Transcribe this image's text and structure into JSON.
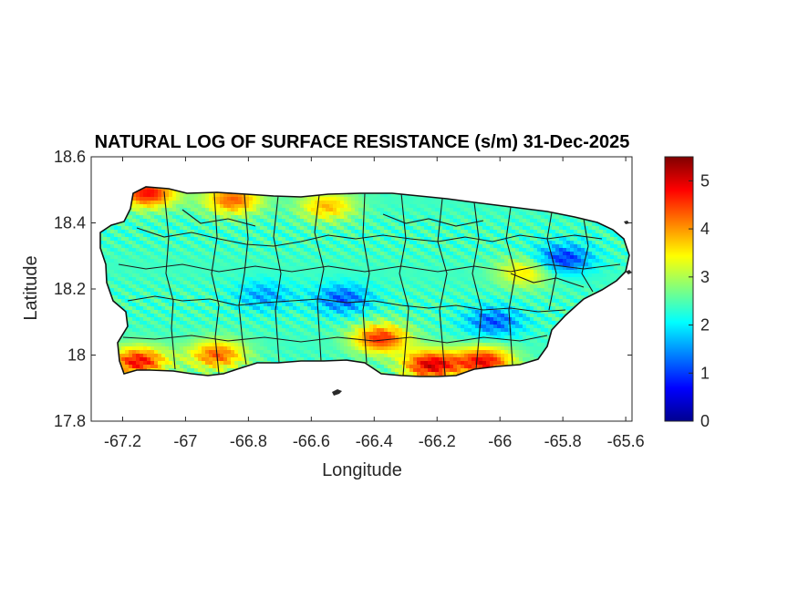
{
  "chart_data": {
    "type": "heatmap",
    "title": "NATURAL LOG OF SURFACE RESISTANCE (s/m) 31-Dec-2025",
    "xlabel": "Longitude",
    "ylabel": "Latitude",
    "xlim": [
      -67.3,
      -65.58
    ],
    "ylim": [
      17.8,
      18.6
    ],
    "xticks": [
      -67.2,
      -67,
      -66.8,
      -66.6,
      -66.4,
      -66.2,
      -66,
      -65.8,
      -65.6
    ],
    "xtick_labels": [
      "-67.2",
      "-67",
      "-66.8",
      "-66.6",
      "-66.4",
      "-66.2",
      "-66",
      "-65.8",
      "-65.6"
    ],
    "yticks": [
      17.8,
      18,
      18.2,
      18.4,
      18.6
    ],
    "ytick_labels": [
      "17.8",
      "18",
      "18.2",
      "18.4",
      "18.6"
    ],
    "colorbar": {
      "colormap": "jet",
      "range": [
        0,
        5.5
      ],
      "ticks": [
        0,
        1,
        2,
        3,
        4,
        5
      ],
      "tick_labels": [
        "0",
        "1",
        "2",
        "3",
        "4",
        "5"
      ]
    },
    "grid": false,
    "features": {
      "typical_value": 2.4,
      "high_zones": [
        {
          "lon": -67.12,
          "lat": 18.49,
          "value": 4.8
        },
        {
          "lon": -66.85,
          "lat": 18.47,
          "value": 4.3
        },
        {
          "lon": -66.55,
          "lat": 18.45,
          "value": 3.8
        },
        {
          "lon": -67.15,
          "lat": 17.98,
          "value": 4.8
        },
        {
          "lon": -66.9,
          "lat": 18.0,
          "value": 4.3
        },
        {
          "lon": -66.38,
          "lat": 18.05,
          "value": 4.6
        },
        {
          "lon": -66.22,
          "lat": 17.97,
          "value": 5.0
        },
        {
          "lon": -66.05,
          "lat": 17.98,
          "value": 4.8
        },
        {
          "lon": -65.92,
          "lat": 18.25,
          "value": 3.6
        }
      ],
      "low_zones": [
        {
          "lon": -66.5,
          "lat": 18.17,
          "value": 1.2
        },
        {
          "lon": -66.75,
          "lat": 18.18,
          "value": 1.6
        },
        {
          "lon": -65.8,
          "lat": 18.29,
          "value": 0.9
        },
        {
          "lon": -66.02,
          "lat": 18.1,
          "value": 1.2
        }
      ]
    }
  }
}
